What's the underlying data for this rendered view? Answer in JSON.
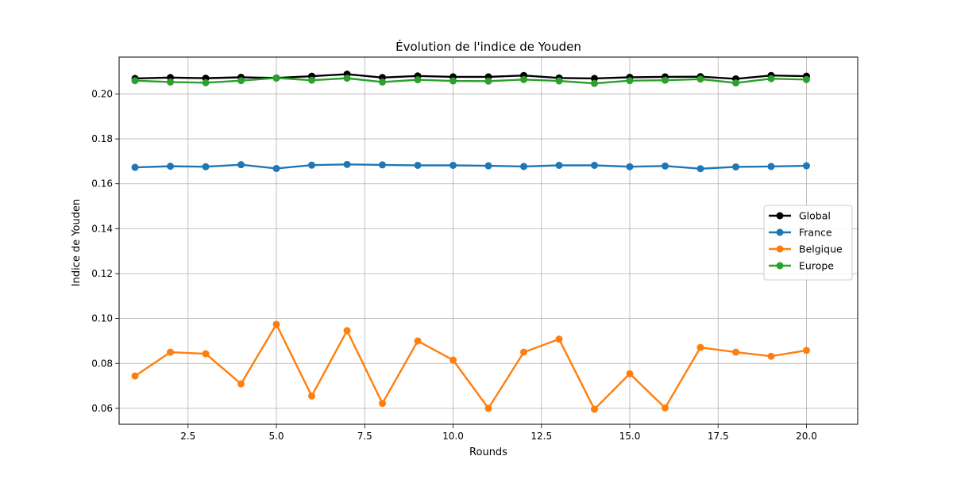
{
  "chart_data": {
    "type": "line",
    "title": "Évolution de l'indice de Youden",
    "xlabel": "Rounds",
    "ylabel": "Indice de Youden",
    "xlim": [
      0.55,
      21.45
    ],
    "ylim": [
      0.0529,
      0.2164
    ],
    "xticks": [
      2.5,
      5.0,
      7.5,
      10.0,
      12.5,
      15.0,
      17.5,
      20.0
    ],
    "xtick_labels": [
      "2.5",
      "5.0",
      "7.5",
      "10.0",
      "12.5",
      "15.0",
      "17.5",
      "20.0"
    ],
    "yticks": [
      0.06,
      0.08,
      0.1,
      0.12,
      0.14,
      0.16,
      0.18,
      0.2
    ],
    "ytick_labels": [
      "0.06",
      "0.08",
      "0.10",
      "0.12",
      "0.14",
      "0.16",
      "0.18",
      "0.20"
    ],
    "grid": true,
    "legend_position": "center-right",
    "x": [
      1,
      2,
      3,
      4,
      5,
      6,
      7,
      8,
      9,
      10,
      11,
      12,
      13,
      14,
      15,
      16,
      17,
      18,
      19,
      20
    ],
    "series": [
      {
        "name": "Global",
        "color": "#000000",
        "values": [
          0.2069,
          0.2073,
          0.207,
          0.2074,
          0.2071,
          0.2079,
          0.2088,
          0.2073,
          0.208,
          0.2076,
          0.2076,
          0.2082,
          0.2071,
          0.2069,
          0.2074,
          0.2076,
          0.2077,
          0.2067,
          0.2082,
          0.2079
        ]
      },
      {
        "name": "France",
        "color": "#1f77b4",
        "values": [
          0.1673,
          0.1678,
          0.1676,
          0.1685,
          0.1668,
          0.1683,
          0.1686,
          0.1684,
          0.1682,
          0.1682,
          0.168,
          0.1677,
          0.1682,
          0.1682,
          0.1676,
          0.1679,
          0.1667,
          0.1675,
          0.1677,
          0.168
        ]
      },
      {
        "name": "Belgique",
        "color": "#ff7f0e",
        "values": [
          0.0744,
          0.085,
          0.0843,
          0.0709,
          0.0974,
          0.0655,
          0.0946,
          0.0622,
          0.09,
          0.0815,
          0.06,
          0.085,
          0.0908,
          0.0596,
          0.0754,
          0.0602,
          0.0871,
          0.085,
          0.0832,
          0.0858
        ]
      },
      {
        "name": "Europe",
        "color": "#2ca02c",
        "values": [
          0.2059,
          0.2053,
          0.205,
          0.2059,
          0.2071,
          0.2061,
          0.207,
          0.2053,
          0.2063,
          0.2058,
          0.2057,
          0.2064,
          0.2058,
          0.2047,
          0.2059,
          0.2061,
          0.2066,
          0.2049,
          0.2068,
          0.2064
        ]
      }
    ]
  }
}
